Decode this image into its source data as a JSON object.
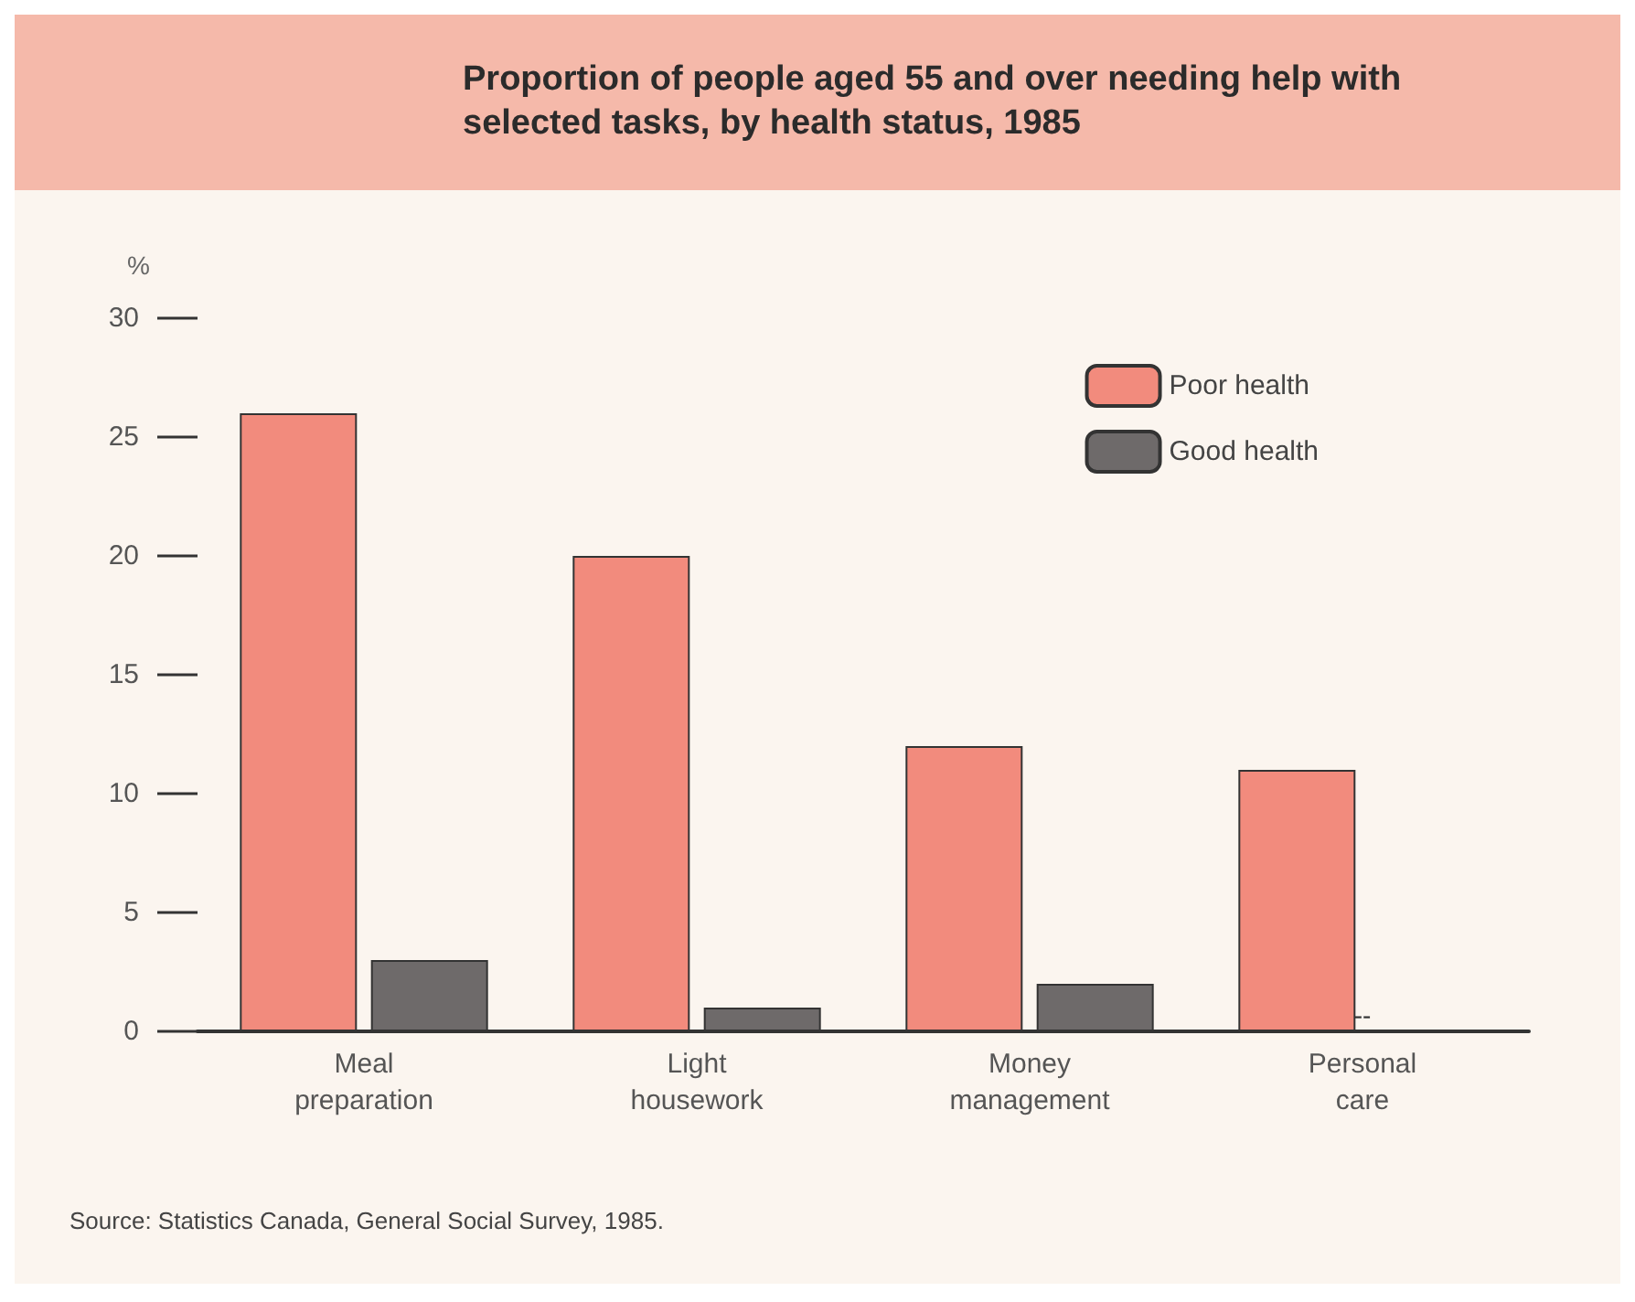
{
  "chart_data": {
    "type": "bar",
    "title": "Proportion of people aged 55 and over needing help with selected tasks, by health status, 1985",
    "ylabel": "%",
    "categories": [
      "Meal\npreparation",
      "Light\nhousework",
      "Money\nmanagement",
      "Personal\ncare"
    ],
    "series": [
      {
        "name": "Poor health",
        "color": "#f28b7d",
        "values": [
          26,
          20,
          12,
          11
        ]
      },
      {
        "name": "Good health",
        "color": "#6e6a6a",
        "values": [
          3,
          1,
          2,
          null
        ]
      }
    ],
    "ylim": [
      0,
      30
    ],
    "yticks": [
      0,
      5,
      10,
      15,
      20,
      25,
      30
    ],
    "grid": false,
    "legend": "top right",
    "annotations": [
      {
        "text": "--",
        "x": "Personal\ncare",
        "y": 0
      },
      "Source: Statistics Canada, General Social Survey, 1985."
    ]
  }
}
